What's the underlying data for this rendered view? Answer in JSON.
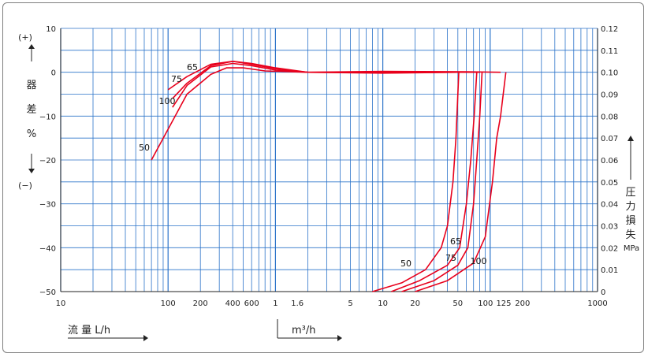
{
  "chart_data": {
    "type": "line",
    "xlabel_left": "流 量 L/h",
    "xlabel_right": "m³/h",
    "x_ticks_lh": [
      "10",
      "100",
      "200",
      "400",
      "600"
    ],
    "x_ticks_m3h": [
      "1",
      "1.6",
      "5",
      "10",
      "20",
      "50",
      "100",
      "125",
      "200",
      "1000"
    ],
    "x_tick_values": [
      10,
      100,
      200,
      400,
      600,
      1000,
      1600,
      5000,
      10000,
      20000,
      50000,
      100000,
      125000,
      200000,
      1000000
    ],
    "xlim_lh": [
      10,
      1000000
    ],
    "x_scale": "log",
    "left_axis": {
      "label_chars": [
        "器",
        "差",
        "%"
      ],
      "plus": "(+)",
      "minus": "(−)",
      "ticks": [
        "10",
        "0",
        "−10",
        "−20",
        "−30",
        "−40",
        "−50"
      ],
      "ylim": [
        -50,
        10
      ]
    },
    "right_axis": {
      "label_chars": [
        "圧",
        "力",
        "損",
        "失"
      ],
      "unit": "MPa",
      "ticks": [
        "0.12",
        "0.11",
        "0.10",
        "0.09",
        "0.08",
        "0.07",
        "0.06",
        "0.05",
        "0.04",
        "0.03",
        "0.02",
        "0.01",
        "0"
      ],
      "ylim": [
        0,
        0.12
      ]
    },
    "series": [
      {
        "name": "50",
        "axis": "left",
        "points": [
          [
            70,
            -20
          ],
          [
            100,
            -13
          ],
          [
            150,
            -5
          ],
          [
            250,
            -0.5
          ],
          [
            350,
            1.0
          ],
          [
            500,
            1.0
          ],
          [
            800,
            0.3
          ],
          [
            2000,
            0
          ],
          [
            10000,
            0
          ],
          [
            40000,
            0
          ],
          [
            50000,
            0
          ]
        ]
      },
      {
        "name": "65",
        "axis": "left",
        "points": [
          [
            100,
            -4
          ],
          [
            150,
            -1
          ],
          [
            250,
            1.8
          ],
          [
            400,
            2.5
          ],
          [
            600,
            2.0
          ],
          [
            1000,
            1.0
          ],
          [
            2000,
            0
          ],
          [
            10000,
            -0.2
          ],
          [
            50000,
            0
          ],
          [
            70000,
            0
          ]
        ]
      },
      {
        "name": "75",
        "axis": "left",
        "points": [
          [
            110,
            -6
          ],
          [
            150,
            -2.5
          ],
          [
            250,
            1.5
          ],
          [
            400,
            2.5
          ],
          [
            600,
            1.8
          ],
          [
            1000,
            0.8
          ],
          [
            2000,
            0
          ],
          [
            10000,
            -0.1
          ],
          [
            50000,
            0
          ],
          [
            80000,
            0
          ]
        ]
      },
      {
        "name": "100",
        "axis": "left",
        "points": [
          [
            110,
            -8
          ],
          [
            150,
            -3
          ],
          [
            250,
            1.2
          ],
          [
            400,
            2.0
          ],
          [
            600,
            1.5
          ],
          [
            1000,
            0.5
          ],
          [
            2000,
            0
          ],
          [
            10000,
            0.2
          ],
          [
            60000,
            0.1
          ],
          [
            125000,
            0
          ]
        ]
      },
      {
        "name": "50",
        "axis": "right",
        "points": [
          [
            8000,
            0
          ],
          [
            15000,
            0.004
          ],
          [
            25000,
            0.01
          ],
          [
            35000,
            0.02
          ],
          [
            40000,
            0.03
          ],
          [
            45000,
            0.05
          ],
          [
            48000,
            0.07
          ],
          [
            51000,
            0.1
          ]
        ]
      },
      {
        "name": "65",
        "axis": "right",
        "points": [
          [
            12000,
            0
          ],
          [
            22000,
            0.005
          ],
          [
            40000,
            0.012
          ],
          [
            52000,
            0.02
          ],
          [
            60000,
            0.04
          ],
          [
            66000,
            0.06
          ],
          [
            71000,
            0.08
          ],
          [
            75000,
            0.1
          ]
        ]
      },
      {
        "name": "75",
        "axis": "right",
        "points": [
          [
            15000,
            0
          ],
          [
            30000,
            0.005
          ],
          [
            50000,
            0.012
          ],
          [
            62000,
            0.02
          ],
          [
            70000,
            0.04
          ],
          [
            75000,
            0.06
          ],
          [
            80000,
            0.08
          ],
          [
            84000,
            0.1
          ]
        ]
      },
      {
        "name": "100",
        "axis": "right",
        "points": [
          [
            20000,
            0
          ],
          [
            40000,
            0.005
          ],
          [
            70000,
            0.013
          ],
          [
            90000,
            0.025
          ],
          [
            105000,
            0.05
          ],
          [
            115000,
            0.07
          ],
          [
            125000,
            0.08
          ],
          [
            140000,
            0.1
          ]
        ]
      }
    ],
    "series_labels": [
      "50",
      "75",
      "65",
      "100",
      "50",
      "75",
      "65",
      "100"
    ],
    "line_color": "#e8001c",
    "grid_color": "#2b73c9",
    "grid": true
  }
}
